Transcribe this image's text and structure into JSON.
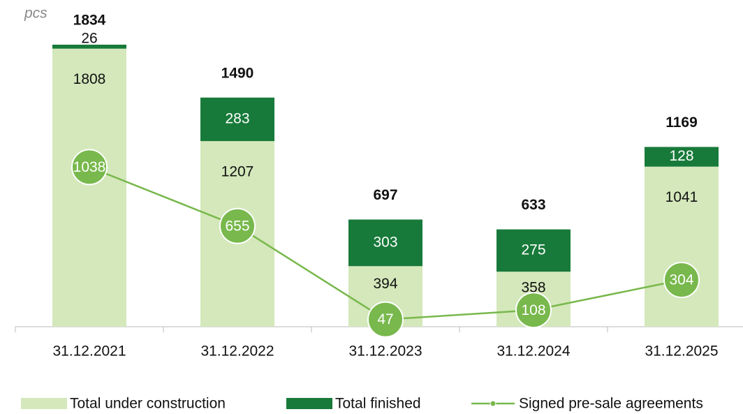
{
  "chart_data": {
    "type": "bar_line",
    "unit": "pcs",
    "categories": [
      "31.12.2021",
      "31.12.2022",
      "31.12.2023",
      "31.12.2024",
      "31.12.2025"
    ],
    "series": [
      {
        "name": "Total under construction",
        "color": "#d4e8bb",
        "values": [
          1808,
          1207,
          394,
          358,
          1041
        ]
      },
      {
        "name": "Total finished",
        "color": "#187a3a",
        "values": [
          26,
          283,
          303,
          275,
          128
        ]
      },
      {
        "name": "Signed pre-sale agreements",
        "color": "#78b84c",
        "type": "line",
        "values": [
          1038,
          655,
          47,
          108,
          304
        ]
      }
    ],
    "totals": [
      1834,
      1490,
      697,
      633,
      1169
    ],
    "ylim": [
      0,
      2000
    ]
  }
}
